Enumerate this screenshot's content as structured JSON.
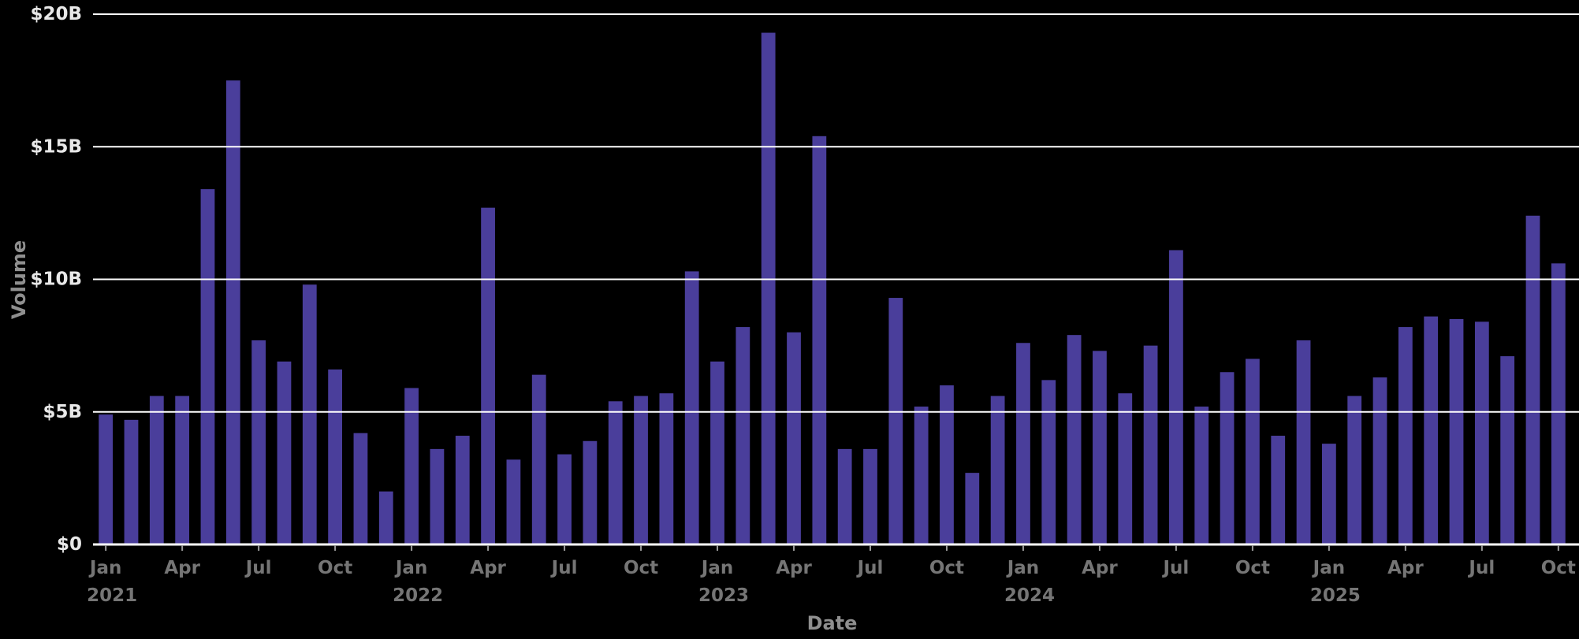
{
  "chart_data": {
    "type": "bar",
    "title": "",
    "xlabel": "Date",
    "ylabel": "Volume",
    "ylim": [
      0,
      20
    ],
    "grid": "horizontal, drawn above bars",
    "legend": "none",
    "x": [
      "Jan 2021",
      "Feb 2021",
      "Mar 2021",
      "Apr 2021",
      "May 2021",
      "Jun 2021",
      "Jul 2021",
      "Aug 2021",
      "Sep 2021",
      "Oct 2021",
      "Nov 2021",
      "Dec 2021",
      "Jan 2022",
      "Feb 2022",
      "Mar 2022",
      "Apr 2022",
      "May 2022",
      "Jun 2022",
      "Jul 2022",
      "Aug 2022",
      "Sep 2022",
      "Oct 2022",
      "Nov 2022",
      "Dec 2022",
      "Jan 2023",
      "Feb 2023",
      "Mar 2023",
      "Apr 2023",
      "May 2023",
      "Jun 2023",
      "Jul 2023",
      "Aug 2023",
      "Sep 2023",
      "Oct 2023",
      "Nov 2023",
      "Dec 2023",
      "Jan 2024",
      "Feb 2024",
      "Mar 2024",
      "Apr 2024",
      "May 2024",
      "Jun 2024",
      "Jul 2024",
      "Aug 2024",
      "Sep 2024",
      "Oct 2024",
      "Nov 2024",
      "Dec 2024",
      "Jan 2025",
      "Feb 2025",
      "Mar 2025",
      "Apr 2025",
      "May 2025",
      "Jun 2025",
      "Jul 2025",
      "Aug 2025",
      "Sep 2025",
      "Oct 2025"
    ],
    "values": [
      4.9,
      4.7,
      5.6,
      5.6,
      13.4,
      17.5,
      7.7,
      6.9,
      9.8,
      6.6,
      4.2,
      2.0,
      5.9,
      3.6,
      4.1,
      12.7,
      3.2,
      6.4,
      3.4,
      3.9,
      5.4,
      5.6,
      5.7,
      10.3,
      6.9,
      8.2,
      19.3,
      8.0,
      15.4,
      3.6,
      3.6,
      9.3,
      5.2,
      6.0,
      2.7,
      5.6,
      7.6,
      6.2,
      7.9,
      7.3,
      5.7,
      7.5,
      11.1,
      5.2,
      6.5,
      7.0,
      4.1,
      7.7,
      3.8,
      5.6,
      6.3,
      8.2,
      8.6,
      8.5,
      8.4,
      7.1,
      12.4,
      10.6
    ],
    "values_unit": "billions USD",
    "y_ticks": [
      {
        "v": 0,
        "label": "$0"
      },
      {
        "v": 5,
        "label": "$5B"
      },
      {
        "v": 10,
        "label": "$10B"
      },
      {
        "v": 15,
        "label": "$15B"
      },
      {
        "v": 20,
        "label": "$20B"
      }
    ],
    "gridline_values": [
      5,
      10,
      15,
      20
    ],
    "x_ticks": [
      {
        "i": 0,
        "month": "Jan",
        "year": "2021"
      },
      {
        "i": 3,
        "month": "Apr"
      },
      {
        "i": 6,
        "month": "Jul"
      },
      {
        "i": 9,
        "month": "Oct"
      },
      {
        "i": 12,
        "month": "Jan",
        "year": "2022"
      },
      {
        "i": 15,
        "month": "Apr"
      },
      {
        "i": 18,
        "month": "Jul"
      },
      {
        "i": 21,
        "month": "Oct"
      },
      {
        "i": 24,
        "month": "Jan",
        "year": "2023"
      },
      {
        "i": 27,
        "month": "Apr"
      },
      {
        "i": 30,
        "month": "Jul"
      },
      {
        "i": 33,
        "month": "Oct"
      },
      {
        "i": 36,
        "month": "Jan",
        "year": "2024"
      },
      {
        "i": 39,
        "month": "Apr"
      },
      {
        "i": 42,
        "month": "Jul"
      },
      {
        "i": 45,
        "month": "Oct"
      },
      {
        "i": 48,
        "month": "Jan",
        "year": "2025"
      },
      {
        "i": 51,
        "month": "Apr"
      },
      {
        "i": 54,
        "month": "Jul"
      },
      {
        "i": 57,
        "month": "Oct"
      }
    ],
    "colors": {
      "background": "#000000",
      "bar": "#4a3e9b",
      "gridline": "#ffffff",
      "axis_line": "#ffffff",
      "tick_mark": "#9b9b9b",
      "y_tick_label": "#e8e8e8",
      "x_tick_label": "#757575",
      "axis_title": "#8f8f8f"
    }
  }
}
